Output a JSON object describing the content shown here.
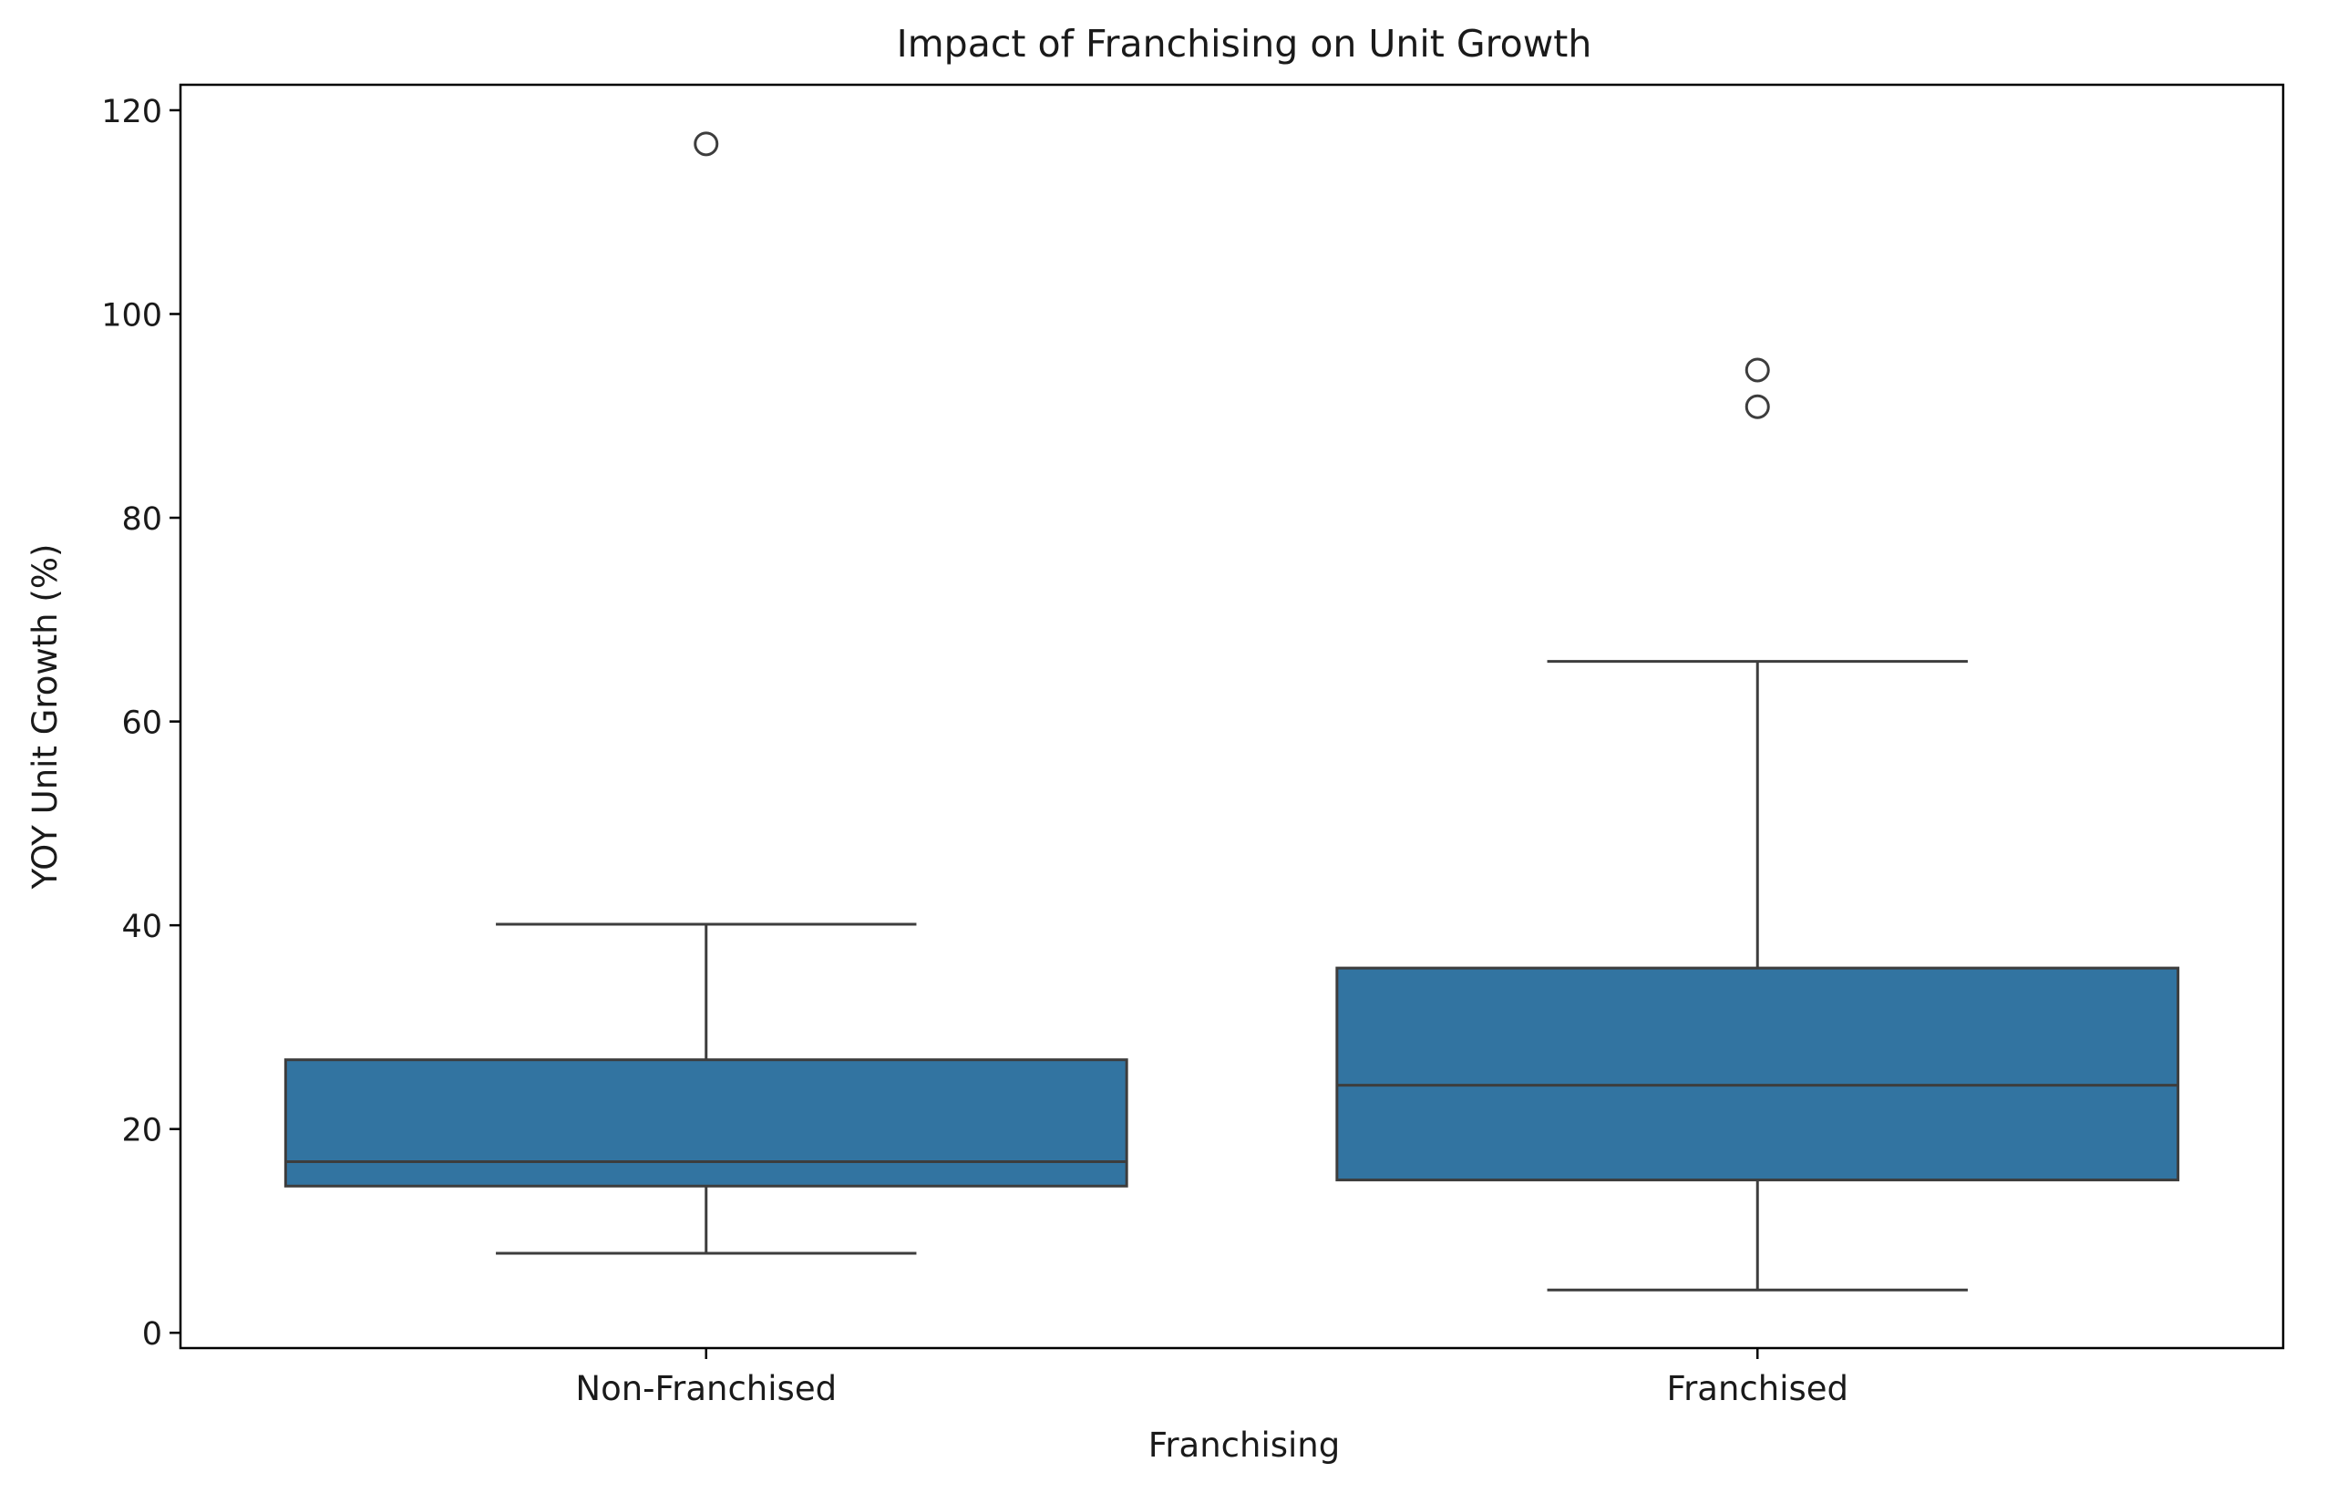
{
  "chart_data": {
    "type": "box",
    "title": "Impact of Franchising on Unit Growth",
    "xlabel": "Franchising",
    "ylabel": "YOY Unit Growth (%)",
    "categories": [
      "Non-Franchised",
      "Franchised"
    ],
    "boxes": [
      {
        "category": "Non-Franchised",
        "whisker_low": 7.8,
        "q1": 14.4,
        "median": 16.8,
        "q3": 26.8,
        "whisker_high": 40.1,
        "outliers": [
          116.7
        ]
      },
      {
        "category": "Franchised",
        "whisker_low": 4.2,
        "q1": 15.0,
        "median": 24.3,
        "q3": 35.8,
        "whisker_high": 65.9,
        "outliers": [
          94.5,
          90.9
        ]
      }
    ],
    "ylim": [
      -1.5,
      122.5
    ],
    "yticks": [
      0,
      20,
      40,
      60,
      80,
      100,
      120
    ],
    "ytick_labels": [
      "0",
      "20",
      "40",
      "60",
      "80",
      "100",
      "120"
    ],
    "grid": false,
    "colors": {
      "box_fill": "#3274a1",
      "line": "#3d3d3d",
      "axis": "#000000"
    }
  }
}
